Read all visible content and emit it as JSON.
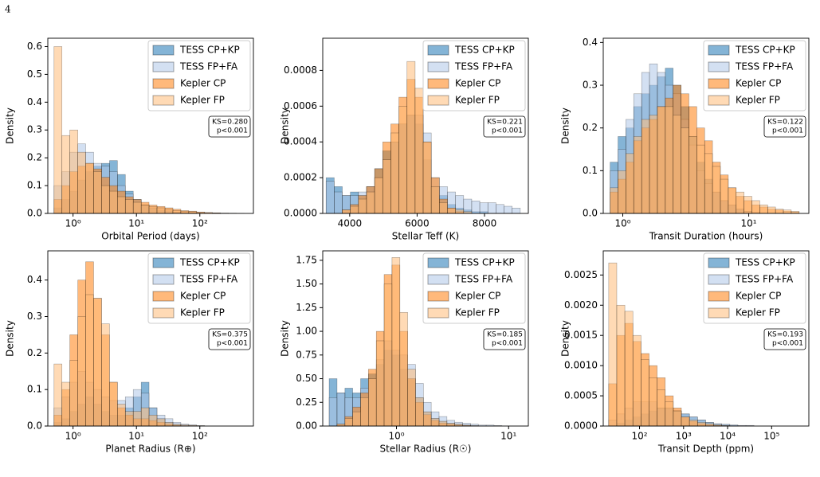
{
  "page_number": "4",
  "chart_data": [
    {
      "type": "histogram",
      "x_label": "Orbital Period (days)",
      "y_label": "Density",
      "xscale": "log",
      "legend": "upper right",
      "annotations": [
        "KS=0.280",
        "p<0.001"
      ],
      "xlim": [
        0.4,
        700
      ],
      "ylim": [
        0,
        0.63
      ],
      "xticks": [
        {
          "value": 1,
          "label": "10⁰"
        },
        {
          "value": 10,
          "label": "10¹"
        },
        {
          "value": 100,
          "label": "10²"
        }
      ],
      "yticks": [
        {
          "value": 0,
          "label": "0.0"
        },
        0.1,
        0.2,
        0.3,
        0.4,
        0.5,
        0.6
      ],
      "bins": [
        0.501,
        0.668,
        0.891,
        1.19,
        1.58,
        2.11,
        2.82,
        3.76,
        5.01,
        6.68,
        8.91,
        11.9,
        15.8,
        21.1,
        28.2,
        37.6,
        50.1,
        66.8,
        89.1,
        119,
        158,
        211,
        282,
        376,
        501
      ],
      "series": [
        {
          "name": "TESS CP+KP",
          "color": "#1f77b4",
          "values": [
            0.02,
            0.05,
            0.08,
            0.12,
            0.15,
            0.17,
            0.18,
            0.19,
            0.14,
            0.08,
            0.05,
            0.03,
            0.02,
            0.01,
            0.008,
            0.005,
            0.003,
            0.002,
            0.001,
            0,
            0,
            0,
            0,
            0
          ]
        },
        {
          "name": "TESS FP+FA",
          "color": "#aec7e8",
          "values": [
            0.1,
            0.15,
            0.22,
            0.25,
            0.22,
            0.18,
            0.17,
            0.15,
            0.1,
            0.07,
            0.05,
            0.03,
            0.02,
            0.015,
            0.01,
            0.005,
            0.003,
            0.002,
            0.001,
            0,
            0,
            0,
            0,
            0
          ]
        },
        {
          "name": "Kepler CP",
          "color": "#ff7f0e",
          "values": [
            0.05,
            0.1,
            0.15,
            0.17,
            0.18,
            0.16,
            0.13,
            0.1,
            0.08,
            0.06,
            0.05,
            0.04,
            0.03,
            0.025,
            0.02,
            0.015,
            0.01,
            0.008,
            0.005,
            0.003,
            0.002,
            0.001,
            0,
            0
          ]
        },
        {
          "name": "Kepler FP",
          "color": "#ffbb78",
          "values": [
            0.6,
            0.28,
            0.3,
            0.22,
            0.18,
            0.15,
            0.1,
            0.08,
            0.06,
            0.05,
            0.04,
            0.03,
            0.025,
            0.02,
            0.015,
            0.01,
            0.008,
            0.006,
            0.004,
            0.003,
            0.002,
            0.001,
            0.001,
            0.0005
          ]
        }
      ]
    },
    {
      "type": "histogram",
      "x_label": "Stellar Teff (K)",
      "y_label": "Density",
      "xscale": "linear",
      "legend": "upper right",
      "annotations": [
        "KS=0.221",
        "p<0.001"
      ],
      "xlim": [
        3200,
        9300
      ],
      "ylim": [
        0,
        0.00098
      ],
      "xticks": [
        4000,
        6000,
        8000
      ],
      "yticks": [
        {
          "value": 0,
          "label": "0.0000"
        },
        0.0002,
        0.0004,
        0.0006,
        0.0008
      ],
      "bins": [
        3300,
        3540,
        3780,
        4020,
        4260,
        4500,
        4740,
        4980,
        5220,
        5460,
        5700,
        5940,
        6180,
        6420,
        6660,
        6900,
        7140,
        7380,
        7620,
        7860,
        8100,
        8340,
        8580,
        8820,
        9060
      ],
      "series": [
        {
          "name": "TESS CP+KP",
          "color": "#1f77b4",
          "values": [
            0.0002,
            0.00015,
            0.0001,
            0.00012,
            0.0001,
            0.00015,
            0.00025,
            0.00035,
            0.0004,
            0.0005,
            0.00055,
            0.0005,
            0.0003,
            0.00015,
            0.0001,
            5e-05,
            3e-05,
            2e-05,
            1e-05,
            1e-05,
            0,
            0,
            0,
            0
          ]
        },
        {
          "name": "TESS FP+FA",
          "color": "#aec7e8",
          "values": [
            0.00018,
            0.00012,
            0.0001,
            0.0001,
            0.00012,
            0.00015,
            0.0002,
            0.0003,
            0.0004,
            0.0005,
            0.00055,
            0.00055,
            0.00045,
            0.0002,
            0.00015,
            0.00012,
            0.0001,
            8e-05,
            7e-05,
            6e-05,
            6e-05,
            5e-05,
            4e-05,
            3e-05
          ]
        },
        {
          "name": "Kepler CP",
          "color": "#ff7f0e",
          "values": [
            0,
            0,
            2e-05,
            5e-05,
            0.0001,
            0.00015,
            0.00025,
            0.0004,
            0.0005,
            0.00065,
            0.00075,
            0.00065,
            0.0004,
            0.0002,
            8e-05,
            3e-05,
            1e-05,
            0,
            0,
            0,
            0,
            0,
            0,
            0
          ]
        },
        {
          "name": "Kepler FP",
          "color": "#ffbb78",
          "values": [
            0,
            0,
            2e-05,
            4e-05,
            8e-05,
            0.00012,
            0.0002,
            0.0003,
            0.00045,
            0.0006,
            0.00085,
            0.0007,
            0.0004,
            0.00015,
            6e-05,
            3e-05,
            2e-05,
            1e-05,
            0,
            0,
            0,
            0,
            0,
            0
          ]
        }
      ]
    },
    {
      "type": "histogram",
      "x_label": "Transit Duration (hours)",
      "y_label": "Density",
      "xscale": "log",
      "legend": "upper right",
      "annotations": [
        "KS=0.122",
        "p<0.001"
      ],
      "xlim": [
        0.7,
        30
      ],
      "ylim": [
        0,
        0.41
      ],
      "xticks": [
        {
          "value": 1,
          "label": "10⁰"
        },
        {
          "value": 10,
          "label": "10¹"
        }
      ],
      "yticks": [
        {
          "value": 0,
          "label": "0.0"
        },
        0.1,
        0.2,
        0.3,
        0.4
      ],
      "bins": [
        0.794,
        0.917,
        1.059,
        1.222,
        1.413,
        1.63,
        1.884,
        2.175,
        2.512,
        2.901,
        3.35,
        3.868,
        4.467,
        5.158,
        5.957,
        6.879,
        7.943,
        9.173,
        10.59,
        12.23,
        14.13,
        16.31,
        18.84,
        21.75,
        25.12
      ],
      "series": [
        {
          "name": "TESS CP+KP",
          "color": "#1f77b4",
          "values": [
            0.12,
            0.18,
            0.2,
            0.25,
            0.28,
            0.3,
            0.32,
            0.34,
            0.3,
            0.25,
            0.18,
            0.12,
            0.08,
            0.05,
            0.03,
            0.02,
            0.01,
            0.005,
            0,
            0,
            0,
            0,
            0,
            0
          ]
        },
        {
          "name": "TESS FP+FA",
          "color": "#aec7e8",
          "values": [
            0.1,
            0.15,
            0.22,
            0.28,
            0.33,
            0.35,
            0.33,
            0.3,
            0.28,
            0.22,
            0.16,
            0.1,
            0.07,
            0.05,
            0.03,
            0.02,
            0.01,
            0.005,
            0.003,
            0,
            0,
            0,
            0,
            0
          ]
        },
        {
          "name": "Kepler CP",
          "color": "#ff7f0e",
          "values": [
            0.05,
            0.08,
            0.12,
            0.17,
            0.2,
            0.22,
            0.25,
            0.27,
            0.3,
            0.28,
            0.25,
            0.2,
            0.17,
            0.12,
            0.09,
            0.06,
            0.04,
            0.03,
            0.02,
            0.015,
            0.01,
            0.008,
            0.005,
            0.003
          ]
        },
        {
          "name": "Kepler FP",
          "color": "#ffbb78",
          "values": [
            0.06,
            0.1,
            0.14,
            0.18,
            0.22,
            0.23,
            0.25,
            0.25,
            0.23,
            0.2,
            0.18,
            0.16,
            0.14,
            0.11,
            0.08,
            0.06,
            0.05,
            0.04,
            0.03,
            0.02,
            0.015,
            0.01,
            0.008,
            0.005
          ]
        }
      ]
    },
    {
      "type": "histogram",
      "x_label": "Planet Radius (R⊕)",
      "y_label": "Density",
      "xscale": "log",
      "legend": "upper right",
      "annotations": [
        "KS=0.375",
        "p<0.001"
      ],
      "xlim": [
        0.4,
        700
      ],
      "ylim": [
        0,
        0.48
      ],
      "xticks": [
        {
          "value": 1,
          "label": "10⁰"
        },
        {
          "value": 10,
          "label": "10¹"
        },
        {
          "value": 100,
          "label": "10²"
        }
      ],
      "yticks": [
        {
          "value": 0,
          "label": "0.0"
        },
        0.1,
        0.2,
        0.3,
        0.4
      ],
      "bins": [
        0.501,
        0.668,
        0.891,
        1.19,
        1.58,
        2.11,
        2.82,
        3.76,
        5.01,
        6.68,
        8.91,
        11.9,
        15.8,
        21.1,
        28.2,
        37.6,
        50.1,
        66.8,
        89.1,
        119,
        158,
        211,
        282,
        376,
        501
      ],
      "series": [
        {
          "name": "TESS CP+KP",
          "color": "#1f77b4",
          "values": [
            0.01,
            0.02,
            0.04,
            0.06,
            0.08,
            0.06,
            0.04,
            0.03,
            0.03,
            0.05,
            0.08,
            0.12,
            0.05,
            0.02,
            0.01,
            0.005,
            0.002,
            0,
            0,
            0,
            0,
            0,
            0,
            0
          ]
        },
        {
          "name": "TESS FP+FA",
          "color": "#aec7e8",
          "values": [
            0.05,
            0.08,
            0.12,
            0.15,
            0.12,
            0.1,
            0.08,
            0.07,
            0.07,
            0.08,
            0.1,
            0.09,
            0.05,
            0.03,
            0.02,
            0.01,
            0.005,
            0.003,
            0.001,
            0,
            0,
            0,
            0,
            0
          ]
        },
        {
          "name": "Kepler CP",
          "color": "#ff7f0e",
          "values": [
            0.03,
            0.1,
            0.25,
            0.4,
            0.45,
            0.35,
            0.25,
            0.12,
            0.05,
            0.03,
            0.02,
            0.02,
            0.015,
            0.01,
            0.005,
            0.002,
            0,
            0,
            0,
            0,
            0,
            0,
            0,
            0
          ]
        },
        {
          "name": "Kepler FP",
          "color": "#ffbb78",
          "values": [
            0.17,
            0.12,
            0.18,
            0.3,
            0.36,
            0.35,
            0.28,
            0.12,
            0.06,
            0.04,
            0.04,
            0.05,
            0.03,
            0.02,
            0.01,
            0.005,
            0.003,
            0.002,
            0.001,
            0,
            0,
            0,
            0,
            0
          ]
        }
      ]
    },
    {
      "type": "histogram",
      "x_label": "Stellar Radius (R☉)",
      "y_label": "Density",
      "xscale": "log",
      "legend": "upper right",
      "annotations": [
        "KS=0.185",
        "p<0.001"
      ],
      "xlim": [
        0.22,
        15
      ],
      "ylim": [
        0,
        1.85
      ],
      "xticks": [
        {
          "value": 1,
          "label": "10⁰"
        },
        {
          "value": 10,
          "label": "10¹"
        }
      ],
      "yticks": [
        {
          "value": 0,
          "label": "0.00"
        },
        0.25,
        {
          "value": 0.5,
          "label": "0.50"
        },
        0.75,
        {
          "value": 1,
          "label": "1.00"
        },
        1.25,
        {
          "value": 1.5,
          "label": "1.50"
        },
        1.75
      ],
      "bins": [
        0.251,
        0.295,
        0.347,
        0.407,
        0.479,
        0.562,
        0.661,
        0.776,
        0.912,
        1.072,
        1.259,
        1.479,
        1.738,
        2.042,
        2.399,
        2.818,
        3.311,
        3.89,
        4.571,
        5.37,
        6.31,
        7.413,
        8.71,
        10.23,
        12.02
      ],
      "series": [
        {
          "name": "TESS CP+KP",
          "color": "#1f77b4",
          "values": [
            0.5,
            0.35,
            0.4,
            0.35,
            0.5,
            0.55,
            0.65,
            0.8,
            0.75,
            0.6,
            0.5,
            0.3,
            0.15,
            0.08,
            0.05,
            0.03,
            0.02,
            0.01,
            0,
            0,
            0,
            0,
            0,
            0
          ]
        },
        {
          "name": "TESS FP+FA",
          "color": "#aec7e8",
          "values": [
            0.3,
            0.35,
            0.3,
            0.3,
            0.4,
            0.5,
            0.7,
            0.9,
            0.8,
            0.75,
            0.65,
            0.45,
            0.25,
            0.15,
            0.1,
            0.06,
            0.04,
            0.03,
            0.02,
            0.01,
            0.01,
            0.005,
            0,
            0
          ]
        },
        {
          "name": "Kepler CP",
          "color": "#ff7f0e",
          "values": [
            0,
            0.02,
            0.1,
            0.2,
            0.35,
            0.6,
            1.0,
            1.6,
            1.7,
            1.0,
            0.5,
            0.25,
            0.12,
            0.06,
            0.03,
            0.02,
            0.01,
            0.005,
            0,
            0,
            0,
            0,
            0,
            0
          ]
        },
        {
          "name": "Kepler FP",
          "color": "#ffbb78",
          "values": [
            0,
            0.02,
            0.08,
            0.15,
            0.3,
            0.5,
            0.9,
            1.5,
            1.78,
            1.2,
            0.6,
            0.3,
            0.15,
            0.08,
            0.05,
            0.03,
            0.02,
            0.01,
            0.005,
            0,
            0,
            0,
            0,
            0
          ]
        }
      ]
    },
    {
      "type": "histogram",
      "x_label": "Transit Depth (ppm)",
      "y_label": "Density",
      "xscale": "log",
      "legend": "upper right",
      "annotations": [
        "KS=0.193",
        "p<0.001"
      ],
      "xlim": [
        15,
        700000
      ],
      "ylim": [
        0,
        0.0029
      ],
      "xticks": [
        {
          "value": 100,
          "label": "10²"
        },
        {
          "value": 1000,
          "label": "10³"
        },
        {
          "value": 10000,
          "label": "10⁴"
        },
        {
          "value": 100000,
          "label": "10⁵"
        }
      ],
      "yticks": [
        {
          "value": 0,
          "label": "0.0000"
        },
        0.0005,
        {
          "value": 0.001,
          "label": "0.0010"
        },
        0.0015,
        {
          "value": 0.002,
          "label": "0.0020"
        },
        0.0025
      ],
      "bins": [
        19.95,
        30.43,
        46.42,
        70.79,
        107.98,
        164.7,
        251.2,
        383.1,
        584.5,
        891.3,
        1359,
        2073,
        3162,
        4823,
        7356,
        11220,
        17113,
        26102,
        39811,
        60723,
        92617,
        141254,
        215443,
        328609,
        501187
      ],
      "series": [
        {
          "name": "TESS CP+KP",
          "color": "#1f77b4",
          "values": [
            0,
            5e-05,
            0.0001,
            0.00015,
            0.0002,
            0.00025,
            0.0003,
            0.0003,
            0.00025,
            0.0002,
            0.00015,
            0.0001,
            6e-05,
            3e-05,
            2e-05,
            1e-05,
            0,
            0,
            0,
            0,
            0,
            0,
            0,
            0
          ]
        },
        {
          "name": "TESS FP+FA",
          "color": "#aec7e8",
          "values": [
            0.0001,
            0.0002,
            0.0003,
            0.0004,
            0.0004,
            0.0004,
            0.0003,
            0.0003,
            0.00025,
            0.0002,
            0.00015,
            0.0001,
            6e-05,
            4e-05,
            3e-05,
            2e-05,
            1e-05,
            1e-05,
            0,
            0,
            0,
            0,
            0,
            0
          ]
        },
        {
          "name": "Kepler CP",
          "color": "#ff7f0e",
          "values": [
            0.0007,
            0.0015,
            0.0017,
            0.0014,
            0.0012,
            0.001,
            0.0008,
            0.0005,
            0.0003,
            0.00015,
            8e-05,
            4e-05,
            2e-05,
            1e-05,
            0,
            0,
            0,
            0,
            0,
            0,
            0,
            0,
            0,
            0
          ]
        },
        {
          "name": "Kepler FP",
          "color": "#ffbb78",
          "values": [
            0.0027,
            0.002,
            0.0019,
            0.0015,
            0.0011,
            0.0008,
            0.0006,
            0.0004,
            0.00025,
            0.00015,
            0.0001,
            6e-05,
            4e-05,
            2e-05,
            1e-05,
            0,
            0,
            0,
            0,
            0,
            0,
            0,
            0,
            0
          ]
        }
      ]
    }
  ]
}
